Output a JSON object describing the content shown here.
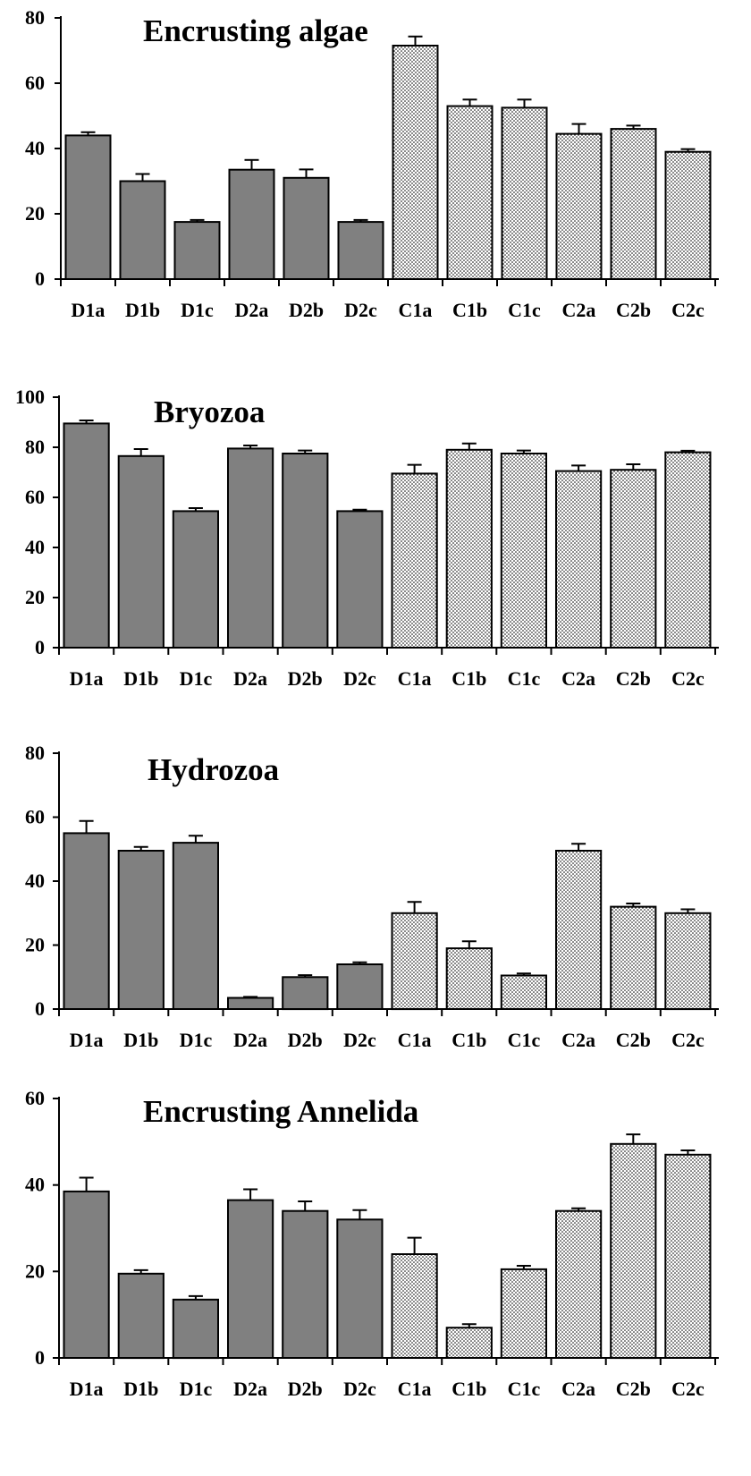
{
  "style": {
    "dark_fill": "#808080",
    "light_fill": "#e6e6e6",
    "stroke": "#000000",
    "pattern": "dotted"
  },
  "chart_data": [
    {
      "type": "bar",
      "title": "Encrusting algae",
      "xlabel": "",
      "ylabel": "",
      "ylim": [
        0,
        80
      ],
      "yticks": [
        0,
        20,
        40,
        60,
        80
      ],
      "categories": [
        "D1a",
        "D1b",
        "D1c",
        "D2a",
        "D2b",
        "D2c",
        "C1a",
        "C1b",
        "C1c",
        "C2a",
        "C2b",
        "C2c"
      ],
      "values": [
        44,
        30,
        17.5,
        33.5,
        31,
        17.5,
        71.5,
        53,
        52.5,
        44.5,
        46,
        39
      ],
      "errors": [
        1,
        2.2,
        0.6,
        3,
        2.6,
        0.6,
        2.8,
        2,
        2.5,
        3,
        1,
        0.8
      ],
      "fill_groups": [
        "dark",
        "dark",
        "dark",
        "dark",
        "dark",
        "dark",
        "light",
        "light",
        "light",
        "light",
        "light",
        "light"
      ]
    },
    {
      "type": "bar",
      "title": "Bryozoa",
      "xlabel": "",
      "ylabel": "",
      "ylim": [
        0,
        100
      ],
      "yticks": [
        0,
        20,
        40,
        60,
        80,
        100
      ],
      "categories": [
        "D1a",
        "D1b",
        "D1c",
        "D2a",
        "D2b",
        "D2c",
        "C1a",
        "C1b",
        "C1c",
        "C2a",
        "C2b",
        "C2c"
      ],
      "values": [
        89.5,
        76.5,
        54.5,
        79.5,
        77.5,
        54.5,
        69.5,
        79,
        77.5,
        70.5,
        71,
        78
      ],
      "errors": [
        1.2,
        2.8,
        1.2,
        1.2,
        1.2,
        0.6,
        3.5,
        2.5,
        1.2,
        2.2,
        2.2,
        0.6
      ],
      "fill_groups": [
        "dark",
        "dark",
        "dark",
        "dark",
        "dark",
        "dark",
        "light",
        "light",
        "light",
        "light",
        "light",
        "light"
      ]
    },
    {
      "type": "bar",
      "title": "Hydrozoa",
      "xlabel": "",
      "ylabel": "",
      "ylim": [
        0,
        80
      ],
      "yticks": [
        0,
        20,
        40,
        60,
        80
      ],
      "categories": [
        "D1a",
        "D1b",
        "D1c",
        "D2a",
        "D2b",
        "D2c",
        "C1a",
        "C1b",
        "C1c",
        "C2a",
        "C2b",
        "C2c"
      ],
      "values": [
        55,
        49.5,
        52,
        3.5,
        10,
        14,
        30,
        19,
        10.5,
        49.5,
        32,
        30
      ],
      "errors": [
        3.8,
        1.2,
        2.2,
        0.3,
        0.6,
        0.6,
        3.5,
        2.2,
        0.6,
        2.2,
        1,
        1.2
      ],
      "fill_groups": [
        "dark",
        "dark",
        "dark",
        "dark",
        "dark",
        "dark",
        "light",
        "light",
        "light",
        "light",
        "light",
        "light"
      ]
    },
    {
      "type": "bar",
      "title": "Encrusting Annelida",
      "xlabel": "",
      "ylabel": "",
      "ylim": [
        0,
        60
      ],
      "yticks": [
        0,
        20,
        40,
        60
      ],
      "categories": [
        "D1a",
        "D1b",
        "D1c",
        "D2a",
        "D2b",
        "D2c",
        "C1a",
        "C1b",
        "C1c",
        "C2a",
        "C2b",
        "C2c"
      ],
      "values": [
        38.5,
        19.5,
        13.5,
        36.5,
        34,
        32,
        24,
        7,
        20.5,
        34,
        49.5,
        47
      ],
      "errors": [
        3.2,
        0.8,
        0.8,
        2.5,
        2.2,
        2.2,
        3.8,
        0.8,
        0.8,
        0.6,
        2.2,
        1
      ],
      "fill_groups": [
        "dark",
        "dark",
        "dark",
        "dark",
        "dark",
        "dark",
        "light",
        "light",
        "light",
        "light",
        "light",
        "light"
      ]
    }
  ]
}
